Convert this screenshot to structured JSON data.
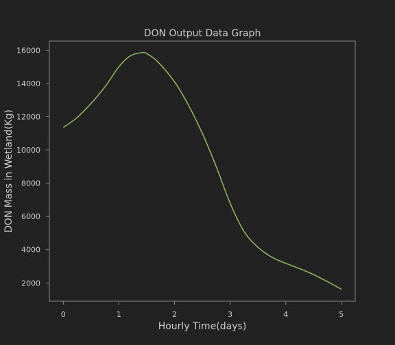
{
  "colors": {
    "background": "#222222",
    "axes_frame": "#888888",
    "text": "#cccccc",
    "line": "#8cb360"
  },
  "chart_data": {
    "type": "line",
    "title": "DON Output Data Graph",
    "xlabel": "Hourly Time(days)",
    "ylabel": "DON Mass in Wetland(Kg)",
    "xlim": [
      -0.25,
      5.25
    ],
    "ylim": [
      900,
      16550
    ],
    "xticks": [
      0,
      1,
      2,
      3,
      4,
      5
    ],
    "yticks": [
      2000,
      4000,
      6000,
      8000,
      10000,
      12000,
      14000,
      16000
    ],
    "grid": false,
    "series": [
      {
        "x": [
          0,
          0.25,
          0.5,
          0.75,
          1.0,
          1.2,
          1.4,
          1.5,
          1.7,
          2.0,
          2.25,
          2.5,
          2.75,
          3.0,
          3.25,
          3.5,
          3.75,
          4.0,
          4.25,
          4.5,
          4.75,
          5.0
        ],
        "y": [
          11350,
          11950,
          12800,
          13800,
          15000,
          15650,
          15850,
          15800,
          15300,
          14100,
          12700,
          11000,
          9000,
          6800,
          5100,
          4150,
          3550,
          3180,
          2860,
          2500,
          2080,
          1620
        ]
      }
    ]
  }
}
